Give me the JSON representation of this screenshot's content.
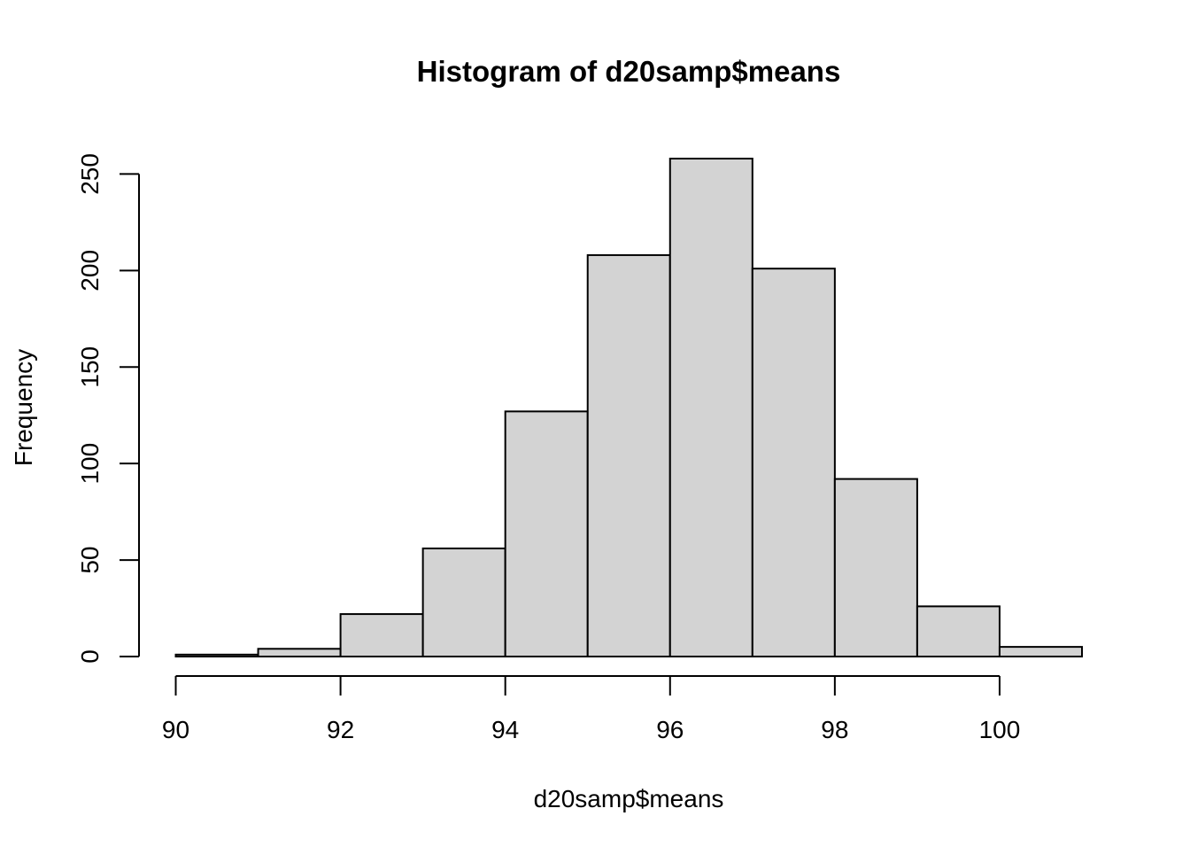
{
  "chart_data": {
    "type": "bar",
    "subtype": "histogram",
    "title": "Histogram of d20samp$means",
    "xlabel": "d20samp$means",
    "ylabel": "Frequency",
    "bins": [
      {
        "start": 90,
        "end": 91,
        "count": 1
      },
      {
        "start": 91,
        "end": 92,
        "count": 4
      },
      {
        "start": 92,
        "end": 93,
        "count": 22
      },
      {
        "start": 93,
        "end": 94,
        "count": 56
      },
      {
        "start": 94,
        "end": 95,
        "count": 127
      },
      {
        "start": 95,
        "end": 96,
        "count": 208
      },
      {
        "start": 96,
        "end": 97,
        "count": 258
      },
      {
        "start": 97,
        "end": 98,
        "count": 201
      },
      {
        "start": 98,
        "end": 99,
        "count": 92
      },
      {
        "start": 99,
        "end": 100,
        "count": 26
      },
      {
        "start": 100,
        "end": 101,
        "count": 5
      }
    ],
    "x_ticks": [
      90,
      92,
      94,
      96,
      98,
      100
    ],
    "x_tick_labels": [
      "90",
      "92",
      "94",
      "96",
      "98",
      "100"
    ],
    "y_ticks": [
      0,
      50,
      100,
      150,
      200,
      250
    ],
    "y_tick_labels": [
      "0",
      "50",
      "100",
      "150",
      "200",
      "250"
    ],
    "xlim": [
      90,
      101
    ],
    "ylim": [
      0,
      258
    ],
    "grid": false,
    "legend": "none",
    "colors": {
      "bar_fill": "#D3D3D3",
      "bar_stroke": "#000000",
      "axis": "#000000",
      "background": "#FFFFFF"
    }
  }
}
